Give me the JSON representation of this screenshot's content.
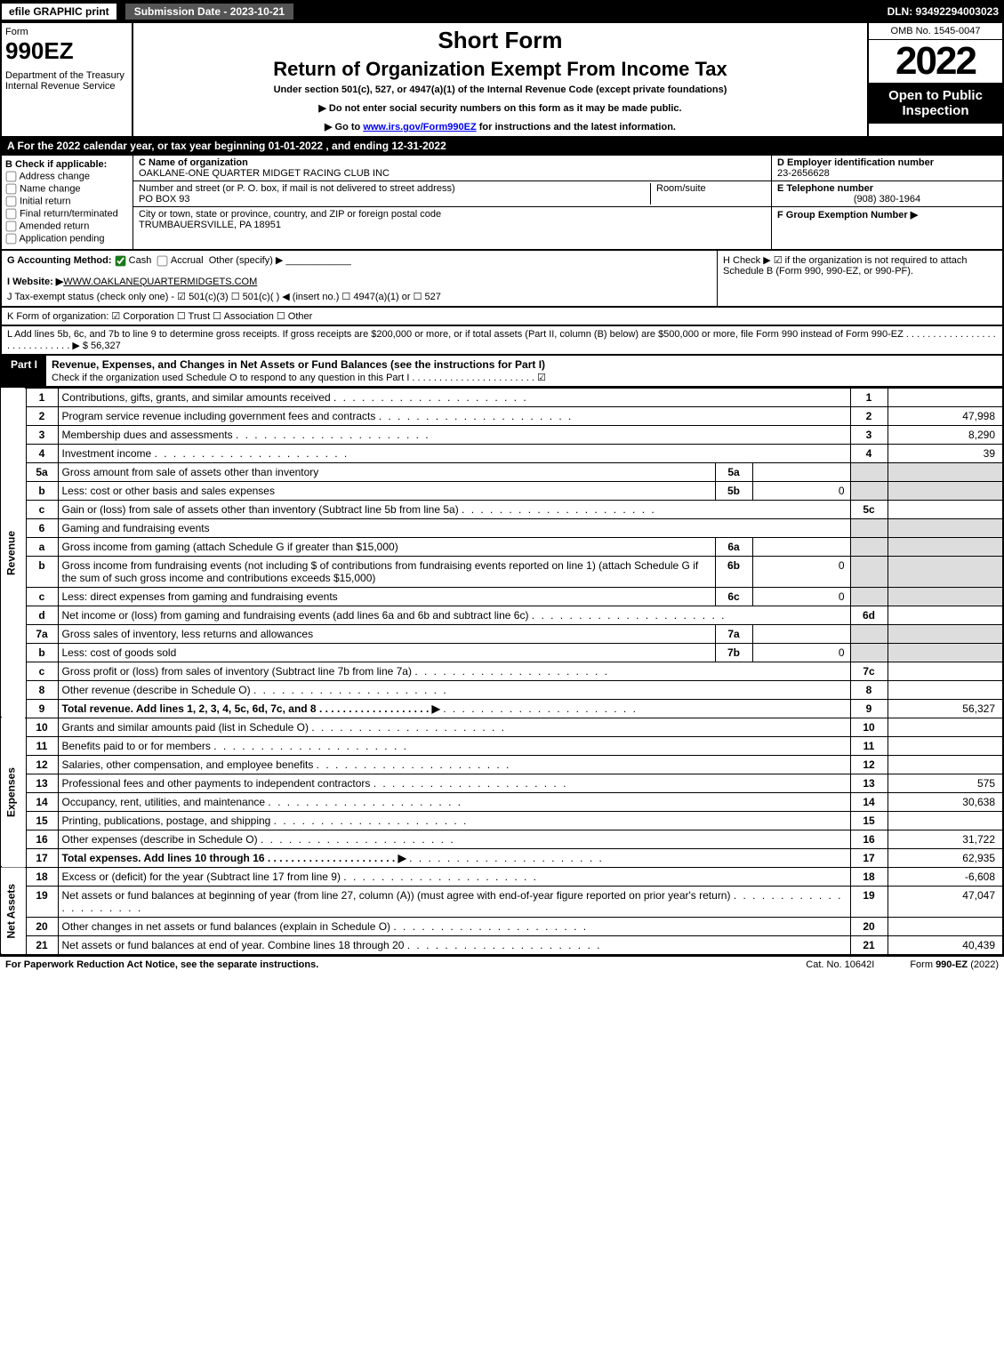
{
  "top": {
    "efile": "efile GRAPHIC print",
    "submission": "Submission Date - 2023-10-21",
    "dln": "DLN: 93492294003023"
  },
  "hdr": {
    "form_label": "Form",
    "form_no": "990EZ",
    "dept": "Department of the Treasury\nInternal Revenue Service",
    "short": "Short Form",
    "title": "Return of Organization Exempt From Income Tax",
    "under": "Under section 501(c), 527, or 4947(a)(1) of the Internal Revenue Code (except private foundations)",
    "note1": "▶ Do not enter social security numbers on this form as it may be made public.",
    "note2_pre": "▶ Go to ",
    "note2_link": "www.irs.gov/Form990EZ",
    "note2_post": " for instructions and the latest information.",
    "omb": "OMB No. 1545-0047",
    "year": "2022",
    "open": "Open to Public Inspection"
  },
  "a_line": "A  For the 2022 calendar year, or tax year beginning 01-01-2022 , and ending 12-31-2022",
  "b": {
    "header": "B  Check if applicable:",
    "items": [
      "Address change",
      "Name change",
      "Initial return",
      "Final return/terminated",
      "Amended return",
      "Application pending"
    ]
  },
  "c": {
    "name_lbl": "C Name of organization",
    "name": "OAKLANE-ONE QUARTER MIDGET RACING CLUB INC",
    "street_lbl": "Number and street (or P. O. box, if mail is not delivered to street address)",
    "street": "PO BOX 93",
    "room_lbl": "Room/suite",
    "city_lbl": "City or town, state or province, country, and ZIP or foreign postal code",
    "city": "TRUMBAUERSVILLE, PA  18951"
  },
  "d": {
    "lbl": "D Employer identification number",
    "val": "23-2656628"
  },
  "e": {
    "lbl": "E Telephone number",
    "val": "(908) 380-1964"
  },
  "f": {
    "lbl": "F Group Exemption Number  ▶"
  },
  "g": {
    "lbl": "G Accounting Method:",
    "cash": "Cash",
    "accrual": "Accrual",
    "other": "Other (specify) ▶"
  },
  "h": {
    "text": "H  Check ▶ ☑ if the organization is not required to attach Schedule B (Form 990, 990-EZ, or 990-PF)."
  },
  "i": {
    "lbl": "I Website: ▶",
    "val": "WWW.OAKLANEQUARTERMIDGETS.COM"
  },
  "j": {
    "text": "J Tax-exempt status (check only one) - ☑ 501(c)(3)  ☐ 501(c)(  ) ◀ (insert no.)  ☐ 4947(a)(1) or  ☐ 527"
  },
  "k": {
    "text": "K Form of organization:  ☑ Corporation   ☐ Trust   ☐ Association   ☐ Other"
  },
  "l": {
    "text": "L Add lines 5b, 6c, and 7b to line 9 to determine gross receipts. If gross receipts are $200,000 or more, or if total assets (Part II, column (B) below) are $500,000 or more, file Form 990 instead of Form 990-EZ . . . . . . . . . . . . . . . . . . . . . . . . . . . . .  ▶ $ 56,327"
  },
  "part1": {
    "label": "Part I",
    "title": "Revenue, Expenses, and Changes in Net Assets or Fund Balances (see the instructions for Part I)",
    "sub": "Check if the organization used Schedule O to respond to any question in this Part I . . . . . . . . . . . . . . . . . . . . . . .  ☑"
  },
  "sides": {
    "rev": "Revenue",
    "exp": "Expenses",
    "net": "Net Assets"
  },
  "rows": [
    {
      "n": "1",
      "d": "Contributions, gifts, grants, and similar amounts received",
      "num": "1",
      "val": ""
    },
    {
      "n": "2",
      "d": "Program service revenue including government fees and contracts",
      "num": "2",
      "val": "47,998"
    },
    {
      "n": "3",
      "d": "Membership dues and assessments",
      "num": "3",
      "val": "8,290"
    },
    {
      "n": "4",
      "d": "Investment income",
      "num": "4",
      "val": "39"
    },
    {
      "n": "5a",
      "d": "Gross amount from sale of assets other than inventory",
      "sub": "5a",
      "subval": "",
      "shade": true
    },
    {
      "n": "b",
      "d": "Less: cost or other basis and sales expenses",
      "sub": "5b",
      "subval": "0",
      "shade": true
    },
    {
      "n": "c",
      "d": "Gain or (loss) from sale of assets other than inventory (Subtract line 5b from line 5a)",
      "num": "5c",
      "val": ""
    },
    {
      "n": "6",
      "d": "Gaming and fundraising events",
      "shade": true,
      "noline": true
    },
    {
      "n": "a",
      "d": "Gross income from gaming (attach Schedule G if greater than $15,000)",
      "sub": "6a",
      "subval": "",
      "shade": true
    },
    {
      "n": "b",
      "d": "Gross income from fundraising events (not including $                of contributions from fundraising events reported on line 1) (attach Schedule G if the sum of such gross income and contributions exceeds $15,000)",
      "sub": "6b",
      "subval": "0",
      "shade": true
    },
    {
      "n": "c",
      "d": "Less: direct expenses from gaming and fundraising events",
      "sub": "6c",
      "subval": "0",
      "shade": true
    },
    {
      "n": "d",
      "d": "Net income or (loss) from gaming and fundraising events (add lines 6a and 6b and subtract line 6c)",
      "num": "6d",
      "val": ""
    },
    {
      "n": "7a",
      "d": "Gross sales of inventory, less returns and allowances",
      "sub": "7a",
      "subval": "",
      "shade": true
    },
    {
      "n": "b",
      "d": "Less: cost of goods sold",
      "sub": "7b",
      "subval": "0",
      "shade": true
    },
    {
      "n": "c",
      "d": "Gross profit or (loss) from sales of inventory (Subtract line 7b from line 7a)",
      "num": "7c",
      "val": ""
    },
    {
      "n": "8",
      "d": "Other revenue (describe in Schedule O)",
      "num": "8",
      "val": ""
    },
    {
      "n": "9",
      "d": "Total revenue. Add lines 1, 2, 3, 4, 5c, 6d, 7c, and 8   . . . . . . . . . . . . . . . . . . .   ▶",
      "num": "9",
      "val": "56,327",
      "bold": true
    }
  ],
  "exp_rows": [
    {
      "n": "10",
      "d": "Grants and similar amounts paid (list in Schedule O)",
      "num": "10",
      "val": ""
    },
    {
      "n": "11",
      "d": "Benefits paid to or for members",
      "num": "11",
      "val": ""
    },
    {
      "n": "12",
      "d": "Salaries, other compensation, and employee benefits",
      "num": "12",
      "val": ""
    },
    {
      "n": "13",
      "d": "Professional fees and other payments to independent contractors",
      "num": "13",
      "val": "575"
    },
    {
      "n": "14",
      "d": "Occupancy, rent, utilities, and maintenance",
      "num": "14",
      "val": "30,638"
    },
    {
      "n": "15",
      "d": "Printing, publications, postage, and shipping",
      "num": "15",
      "val": ""
    },
    {
      "n": "16",
      "d": "Other expenses (describe in Schedule O)",
      "num": "16",
      "val": "31,722"
    },
    {
      "n": "17",
      "d": "Total expenses. Add lines 10 through 16   . . . . . . . . . . . . . . . . . . . . . .   ▶",
      "num": "17",
      "val": "62,935",
      "bold": true
    }
  ],
  "net_rows": [
    {
      "n": "18",
      "d": "Excess or (deficit) for the year (Subtract line 17 from line 9)",
      "num": "18",
      "val": "-6,608"
    },
    {
      "n": "19",
      "d": "Net assets or fund balances at beginning of year (from line 27, column (A)) (must agree with end-of-year figure reported on prior year's return)",
      "num": "19",
      "val": "47,047"
    },
    {
      "n": "20",
      "d": "Other changes in net assets or fund balances (explain in Schedule O)",
      "num": "20",
      "val": ""
    },
    {
      "n": "21",
      "d": "Net assets or fund balances at end of year. Combine lines 18 through 20",
      "num": "21",
      "val": "40,439"
    }
  ],
  "ftr": {
    "l": "For Paperwork Reduction Act Notice, see the separate instructions.",
    "c": "Cat. No. 10642I",
    "r": "Form 990-EZ (2022)"
  }
}
